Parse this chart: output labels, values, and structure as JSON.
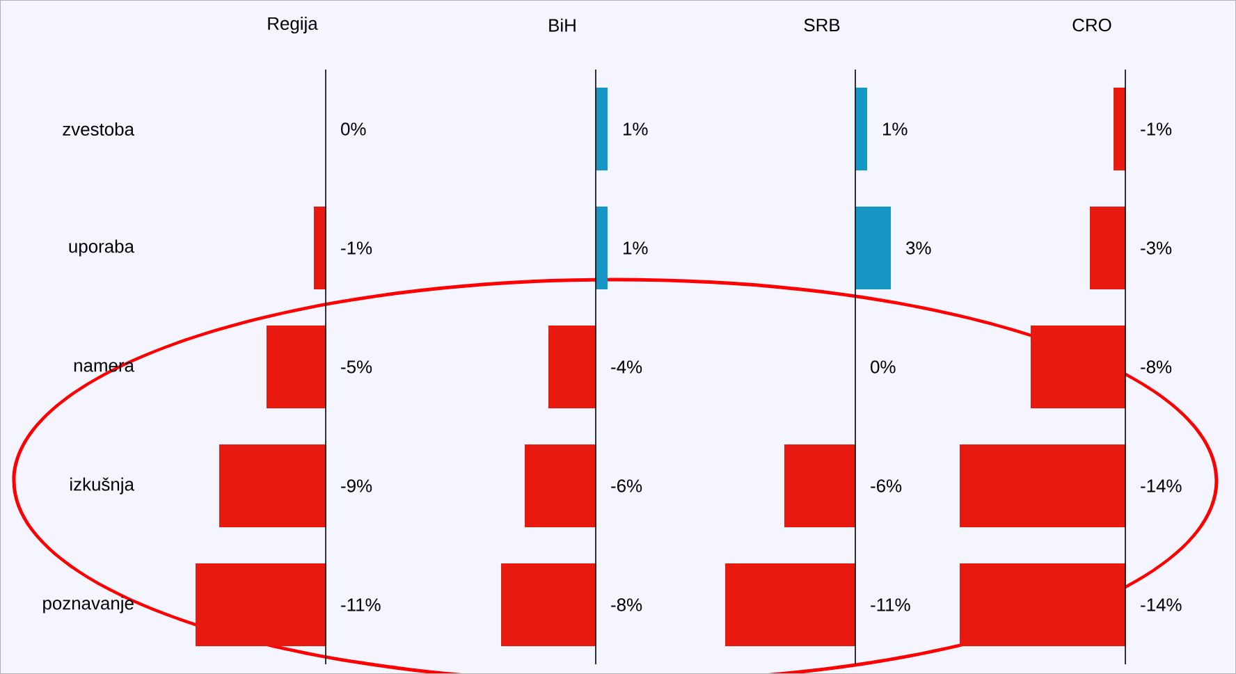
{
  "chart_data": [
    {
      "type": "bar",
      "orientation": "horizontal",
      "title": "Regija",
      "categories": [
        "zvestoba",
        "uporaba",
        "namera",
        "izkušnja",
        "poznavanje"
      ],
      "values": [
        0,
        -1,
        -5,
        -9,
        -11
      ],
      "colors": [
        "#e8190e",
        "#e8190e",
        "#e8190e",
        "#e8190e",
        "#e8190e"
      ],
      "value_labels": [
        "0%",
        "-1%",
        "-5%",
        "-9%",
        "-11%"
      ],
      "tick_labels": "y"
    },
    {
      "type": "bar",
      "orientation": "horizontal",
      "title": "BiH",
      "categories": [
        null,
        null,
        null,
        null,
        null
      ],
      "values": [
        1,
        1,
        -4,
        -6,
        -8
      ],
      "colors": [
        "#1596c4",
        "#1596c4",
        "#e8190e",
        "#e8190e",
        "#e8190e"
      ],
      "value_labels": [
        "1%",
        "1%",
        "-4%",
        "-6%",
        "-8%"
      ],
      "tick_labels": false
    },
    {
      "type": "bar",
      "orientation": "horizontal",
      "title": "SRB",
      "categories": [
        null,
        null,
        null,
        null,
        null
      ],
      "values": [
        1,
        3,
        0,
        -6,
        -11
      ],
      "colors": [
        "#1596c4",
        "#1596c4",
        "#e8190e",
        "#e8190e",
        "#e8190e"
      ],
      "value_labels": [
        "1%",
        "3%",
        "0%",
        "-6%",
        "-11%"
      ],
      "tick_labels": false
    },
    {
      "type": "bar",
      "orientation": "horizontal",
      "title": "CRO",
      "categories": [
        null,
        null,
        null,
        null,
        null
      ],
      "values": [
        -1,
        -3,
        -8,
        -14,
        -14
      ],
      "colors": [
        "#e8190e",
        "#e8190e",
        "#e8190e",
        "#e8190e",
        "#e8190e"
      ],
      "value_labels": [
        "-1%",
        "-3%",
        "-8%",
        "-14%",
        "-14%"
      ],
      "tick_labels": false
    }
  ]
}
